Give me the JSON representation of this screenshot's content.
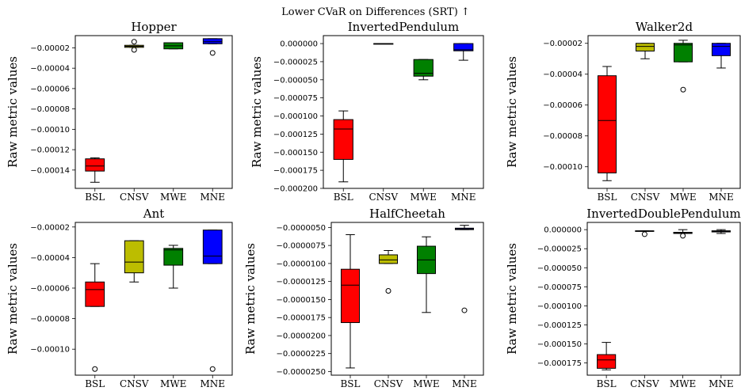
{
  "figure_title": "Lower CVaR on Differences (SRT) ↑",
  "chart_data": [
    {
      "type": "box",
      "title": "Hopper",
      "ylabel": "Raw metric values",
      "categories": [
        "BSL",
        "CNSV",
        "MWE",
        "MNE"
      ],
      "ylim": [
        -0.000158,
        -8e-06
      ],
      "yticks": [
        -0.00014,
        -0.00012,
        -0.0001,
        -8e-05,
        -6e-05,
        -4e-05,
        -2e-05
      ],
      "ytick_labels": [
        "−0.00014",
        "−0.00012",
        "−0.00010",
        "−0.00008",
        "−0.00006",
        "−0.00004",
        "−0.00002"
      ],
      "boxes": [
        {
          "category": "BSL",
          "color": "#ff0000",
          "whislo": -0.000152,
          "q1": -0.000141,
          "median": -0.000136,
          "q3": -0.000129,
          "whishi": -0.000128,
          "fliers": []
        },
        {
          "category": "CNSV",
          "color": "#bcbd00",
          "whislo": -1.95e-05,
          "q1": -1.95e-05,
          "median": -1.85e-05,
          "q3": -1.75e-05,
          "whishi": -1.75e-05,
          "fliers": [
            -2.2e-05,
            -1.4e-05
          ]
        },
        {
          "category": "MWE",
          "color": "#008000",
          "whislo": -2.1e-05,
          "q1": -2.1e-05,
          "median": -1.8e-05,
          "q3": -1.5e-05,
          "whishi": -1.5e-05,
          "fliers": []
        },
        {
          "category": "MNE",
          "color": "#0000ff",
          "whislo": -1.6e-05,
          "q1": -1.6e-05,
          "median": -1.4e-05,
          "q3": -1.1e-05,
          "whishi": -1.1e-05,
          "fliers": [
            -2.5e-05
          ]
        }
      ]
    },
    {
      "type": "box",
      "title": "InvertedPendulum",
      "ylabel": "Raw metric values",
      "categories": [
        "BSL",
        "CNSV",
        "MWE",
        "MNE"
      ],
      "ylim": [
        -0.0002,
        1.1e-05
      ],
      "yticks": [
        -0.0002,
        -0.000175,
        -0.00015,
        -0.000125,
        -0.0001,
        -7.5e-05,
        -5e-05,
        -2.5e-05,
        0
      ],
      "ytick_labels": [
        "−0.000200",
        "−0.000175",
        "−0.000150",
        "−0.000125",
        "−0.000100",
        "−0.000075",
        "−0.000050",
        "−0.000025",
        "0.000000"
      ],
      "boxes": [
        {
          "category": "BSL",
          "color": "#ff0000",
          "whislo": -0.000191,
          "q1": -0.00016,
          "median": -0.000118,
          "q3": -0.000105,
          "whishi": -9.3e-05,
          "fliers": []
        },
        {
          "category": "CNSV",
          "color": "#bcbd00",
          "whislo": 0,
          "q1": 0,
          "median": 0,
          "q3": 0,
          "whishi": 0,
          "fliers": []
        },
        {
          "category": "MWE",
          "color": "#008000",
          "whislo": -5e-05,
          "q1": -4.5e-05,
          "median": -4.1e-05,
          "q3": -2.2e-05,
          "whishi": -2.2e-05,
          "fliers": []
        },
        {
          "category": "MNE",
          "color": "#0000ff",
          "whislo": -2.3e-05,
          "q1": -1e-05,
          "median": -8.5e-06,
          "q3": 0,
          "whishi": 0,
          "fliers": []
        }
      ]
    },
    {
      "type": "box",
      "title": "Walker2d",
      "ylabel": "Raw metric values",
      "categories": [
        "BSL",
        "CNSV",
        "MWE",
        "MNE"
      ],
      "ylim": [
        -0.000114,
        -1.5e-05
      ],
      "yticks": [
        -0.0001,
        -8e-05,
        -6e-05,
        -4e-05,
        -2e-05
      ],
      "ytick_labels": [
        "−0.00010",
        "−0.00008",
        "−0.00006",
        "−0.00004",
        "−0.00002"
      ],
      "boxes": [
        {
          "category": "BSL",
          "color": "#ff0000",
          "whislo": -0.000109,
          "q1": -0.000104,
          "median": -7e-05,
          "q3": -4.1e-05,
          "whishi": -3.5e-05,
          "fliers": []
        },
        {
          "category": "CNSV",
          "color": "#bcbd00",
          "whislo": -3e-05,
          "q1": -2.5e-05,
          "median": -2.2e-05,
          "q3": -2e-05,
          "whishi": -2e-05,
          "fliers": []
        },
        {
          "category": "MWE",
          "color": "#008000",
          "whislo": -3.2e-05,
          "q1": -3.2e-05,
          "median": -2.1e-05,
          "q3": -2e-05,
          "whishi": -1.8e-05,
          "fliers": [
            -5e-05
          ]
        },
        {
          "category": "MNE",
          "color": "#0000ff",
          "whislo": -3.6e-05,
          "q1": -2.8e-05,
          "median": -2.2e-05,
          "q3": -2e-05,
          "whishi": -2e-05,
          "fliers": []
        }
      ]
    },
    {
      "type": "box",
      "title": "Ant",
      "ylabel": "Raw metric values",
      "categories": [
        "BSL",
        "CNSV",
        "MWE",
        "MNE"
      ],
      "ylim": [
        -0.000117,
        -1.7e-05
      ],
      "yticks": [
        -0.0001,
        -8e-05,
        -6e-05,
        -4e-05,
        -2e-05
      ],
      "ytick_labels": [
        "−0.00010",
        "−0.00008",
        "−0.00006",
        "−0.00004",
        "−0.00002"
      ],
      "boxes": [
        {
          "category": "BSL",
          "color": "#ff0000",
          "whislo": -7.2e-05,
          "q1": -7.2e-05,
          "median": -6.1e-05,
          "q3": -5.6e-05,
          "whishi": -4.4e-05,
          "fliers": [
            -0.000113
          ]
        },
        {
          "category": "CNSV",
          "color": "#bcbd00",
          "whislo": -5.6e-05,
          "q1": -5e-05,
          "median": -4.3e-05,
          "q3": -2.9e-05,
          "whishi": -2.9e-05,
          "fliers": []
        },
        {
          "category": "MWE",
          "color": "#008000",
          "whislo": -6e-05,
          "q1": -4.5e-05,
          "median": -3.5e-05,
          "q3": -3.4e-05,
          "whishi": -3.2e-05,
          "fliers": []
        },
        {
          "category": "MNE",
          "color": "#0000ff",
          "whislo": -4.4e-05,
          "q1": -4.4e-05,
          "median": -3.9e-05,
          "q3": -2.2e-05,
          "whishi": -2.2e-05,
          "fliers": [
            -0.000113
          ]
        }
      ]
    },
    {
      "type": "box",
      "title": "HalfCheetah",
      "ylabel": "Raw metric values",
      "categories": [
        "BSL",
        "CNSV",
        "MWE",
        "MNE"
      ],
      "ylim": [
        -2.55e-05,
        -4.3e-06
      ],
      "yticks": [
        -2.5e-05,
        -2.25e-05,
        -2e-05,
        -1.75e-05,
        -1.5e-05,
        -1.25e-05,
        -1e-05,
        -7.5e-06,
        -5e-06
      ],
      "ytick_labels": [
        "−0.0000250",
        "−0.0000225",
        "−0.0000200",
        "−0.0000175",
        "−0.0000150",
        "−0.0000125",
        "−0.0000100",
        "−0.0000075",
        "−0.0000050"
      ],
      "boxes": [
        {
          "category": "BSL",
          "color": "#ff0000",
          "whislo": -2.45e-05,
          "q1": -1.82e-05,
          "median": -1.3e-05,
          "q3": -1.08e-05,
          "whishi": -6e-06,
          "fliers": []
        },
        {
          "category": "CNSV",
          "color": "#bcbd00",
          "whislo": -1e-05,
          "q1": -1e-05,
          "median": -9.5e-06,
          "q3": -8.8e-06,
          "whishi": -8.2e-06,
          "fliers": [
            -1.38e-05
          ]
        },
        {
          "category": "MWE",
          "color": "#008000",
          "whislo": -1.68e-05,
          "q1": -1.14e-05,
          "median": -9.5e-06,
          "q3": -7.6e-06,
          "whishi": -6.3e-06,
          "fliers": []
        },
        {
          "category": "MNE",
          "color": "#0000ff",
          "whislo": -5.3e-06,
          "q1": -5.3e-06,
          "median": -5.2e-06,
          "q3": -5.1e-06,
          "whishi": -4.7e-06,
          "fliers": [
            -1.65e-05
          ]
        }
      ]
    },
    {
      "type": "box",
      "title": "InvertedDoublePendulum",
      "ylabel": "Raw metric values",
      "categories": [
        "BSL",
        "CNSV",
        "MWE",
        "MNE"
      ],
      "ylim": [
        -0.000191,
        9.5e-06
      ],
      "yticks": [
        -0.000175,
        -0.00015,
        -0.000125,
        -0.0001,
        -7.5e-05,
        -5e-05,
        -2.5e-05,
        0
      ],
      "ytick_labels": [
        "−0.000175",
        "−0.000150",
        "−0.000125",
        "−0.000100",
        "−0.000075",
        "−0.000050",
        "−0.000025",
        "0.000000"
      ],
      "boxes": [
        {
          "category": "BSL",
          "color": "#ff0000",
          "whislo": -0.000184,
          "q1": -0.000182,
          "median": -0.000171,
          "q3": -0.000164,
          "whishi": -0.000148,
          "fliers": []
        },
        {
          "category": "CNSV",
          "color": "#bcbd00",
          "whislo": -2e-06,
          "q1": -2e-06,
          "median": -1.8e-06,
          "q3": -1.5e-06,
          "whishi": -1.5e-06,
          "fliers": [
            -6e-06
          ]
        },
        {
          "category": "MWE",
          "color": "#008000",
          "whislo": -5e-06,
          "q1": -5e-06,
          "median": -4e-06,
          "q3": -3.5e-06,
          "whishi": 0,
          "fliers": [
            -8e-06
          ]
        },
        {
          "category": "MNE",
          "color": "#0000ff",
          "whislo": -5e-06,
          "q1": -3e-06,
          "median": -2.2e-06,
          "q3": -1.5e-06,
          "whishi": 0,
          "fliers": []
        }
      ]
    }
  ]
}
